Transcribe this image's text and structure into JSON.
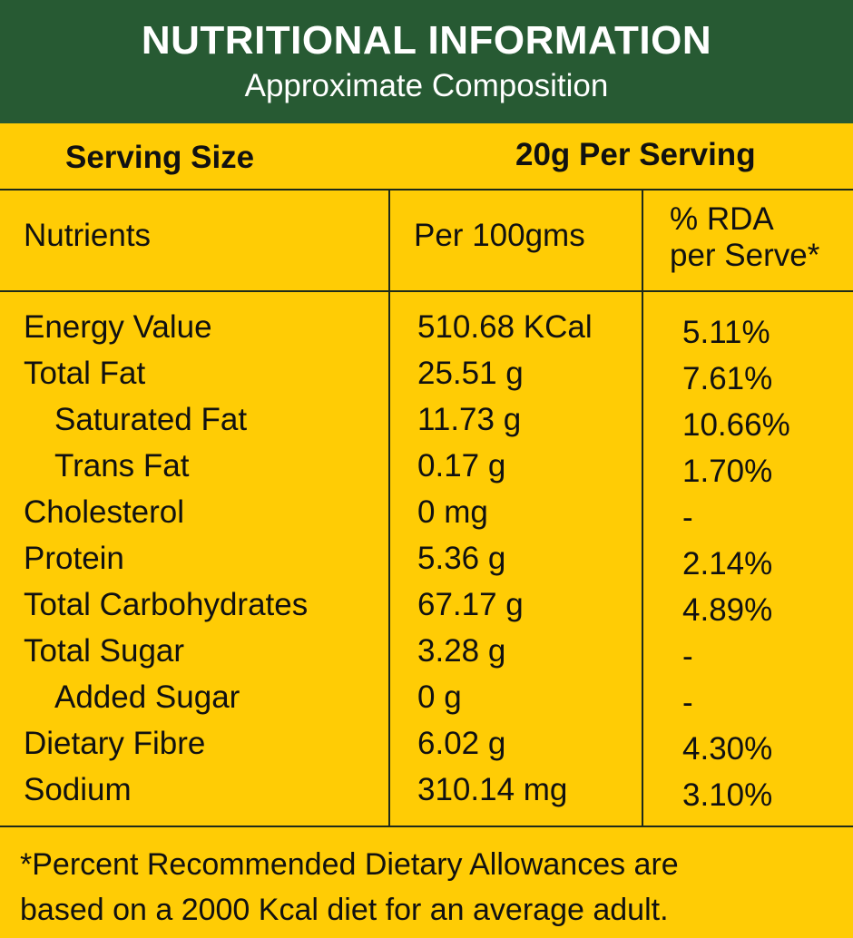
{
  "header": {
    "title": "NUTRITIONAL INFORMATION",
    "subtitle": "Approximate Composition"
  },
  "serving": {
    "label": "Serving Size",
    "value": "20g Per Serving"
  },
  "columns": {
    "nutrients": "Nutrients",
    "per100": "Per 100gms",
    "rda_line1": "% RDA",
    "rda_line2": "per Serve*"
  },
  "rows": [
    {
      "name": "Energy Value",
      "per100": "510.68 KCal",
      "rda": "5.11%",
      "indent": false
    },
    {
      "name": "Total Fat",
      "per100": "25.51 g",
      "rda": "7.61%",
      "indent": false
    },
    {
      "name": "Saturated Fat",
      "per100": "11.73 g",
      "rda": "10.66%",
      "indent": true
    },
    {
      "name": "Trans Fat",
      "per100": "0.17 g",
      "rda": "1.70%",
      "indent": true
    },
    {
      "name": "Cholesterol",
      "per100": "0 mg",
      "rda": "-",
      "indent": false
    },
    {
      "name": "Protein",
      "per100": "5.36 g",
      "rda": "2.14%",
      "indent": false
    },
    {
      "name": "Total Carbohydrates",
      "per100": "67.17 g",
      "rda": "4.89%",
      "indent": false
    },
    {
      "name": "Total Sugar",
      "per100": "3.28 g",
      "rda": "-",
      "indent": false
    },
    {
      "name": "Added Sugar",
      "per100": "0 g",
      "rda": "-",
      "indent": true
    },
    {
      "name": "Dietary Fibre",
      "per100": "6.02 g",
      "rda": "4.30%",
      "indent": false
    },
    {
      "name": "Sodium",
      "per100": "310.14 mg",
      "rda": "3.10%",
      "indent": false
    }
  ],
  "footnote": {
    "line1": "*Percent Recommended Dietary Allowances are",
    "line2": "based on a 2000 Kcal diet for an average adult."
  },
  "colors": {
    "header_bg": "#275A33",
    "panel_bg": "#FFCC05",
    "text": "#111111",
    "header_text": "#FFFFFF"
  }
}
